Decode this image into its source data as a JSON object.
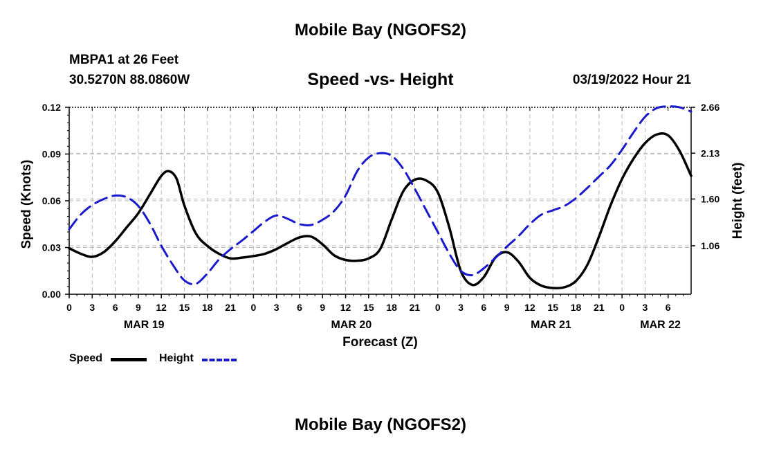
{
  "title": "Mobile Bay (NGOFS2)",
  "station": "MBPA1 at 26 Feet",
  "coords": "30.5270N  88.0860W",
  "datetime": "03/19/2022 Hour 21",
  "bottom_title": "Mobile Bay (NGOFS2)",
  "legend": {
    "speed": "Speed",
    "height": "Height"
  },
  "colors": {
    "speed": "#000000",
    "height": "#1a1acc",
    "grid": "#bbbbbb"
  },
  "chart_data": {
    "type": "line",
    "title": "Speed -vs- Height",
    "xlabel": "Forecast (Z)",
    "ylabel": "Speed (Knots)",
    "y2label": "Height (feet)",
    "x_range": [
      0,
      81
    ],
    "x_tick_labels": [
      "0",
      "3",
      "6",
      "9",
      "12",
      "15",
      "18",
      "21",
      "0",
      "3",
      "6",
      "9",
      "12",
      "15",
      "18",
      "21",
      "0",
      "3",
      "6",
      "9",
      "12",
      "15",
      "18",
      "21",
      "0",
      "3",
      "6"
    ],
    "day_labels": [
      {
        "label": "MAR 19",
        "x": 9.75
      },
      {
        "label": "MAR 20",
        "x": 36.75
      },
      {
        "label": "MAR 21",
        "x": 62.75
      },
      {
        "label": "MAR 22",
        "x": 77
      }
    ],
    "ylim": [
      0,
      0.12
    ],
    "y_ticks": [
      "0.00",
      "0.03",
      "0.06",
      "0.09",
      "0.12"
    ],
    "y2lim": [
      0.5,
      2.66
    ],
    "y2_ticks": [
      "1.06",
      "1.60",
      "2.13",
      "2.66"
    ],
    "grid": true,
    "series": [
      {
        "name": "Speed",
        "axis": "left",
        "style": "solid",
        "x": [
          0,
          1.5,
          3,
          4.5,
          6,
          7.5,
          9,
          10.5,
          12,
          13,
          14,
          15,
          16.5,
          18,
          19.5,
          21,
          22.5,
          24,
          25.5,
          27,
          28.5,
          30,
          31.5,
          33,
          34.5,
          36,
          37.5,
          39,
          40.5,
          42,
          43.5,
          45,
          46.5,
          48,
          49.5,
          51,
          52.5,
          54,
          55.5,
          57,
          58.5,
          60,
          61.5,
          63,
          64.5,
          66,
          67.5,
          69,
          70.5,
          72,
          73.5,
          75,
          76.5,
          78,
          79.5,
          81
        ],
        "values": [
          0.0295,
          0.026,
          0.024,
          0.027,
          0.034,
          0.043,
          0.052,
          0.064,
          0.076,
          0.079,
          0.074,
          0.057,
          0.039,
          0.031,
          0.026,
          0.023,
          0.0235,
          0.0245,
          0.026,
          0.029,
          0.033,
          0.0365,
          0.037,
          0.032,
          0.025,
          0.022,
          0.0215,
          0.023,
          0.029,
          0.048,
          0.066,
          0.0735,
          0.073,
          0.0655,
          0.043,
          0.015,
          0.006,
          0.011,
          0.0235,
          0.027,
          0.021,
          0.0105,
          0.0055,
          0.004,
          0.0045,
          0.0085,
          0.019,
          0.037,
          0.057,
          0.074,
          0.087,
          0.097,
          0.1025,
          0.102,
          0.092,
          0.076
        ]
      },
      {
        "name": "Height",
        "axis": "right",
        "style": "dashed",
        "x": [
          0,
          1.5,
          3,
          4.5,
          6,
          7.5,
          9,
          10.5,
          12,
          13.5,
          15,
          16.5,
          18,
          19.5,
          21,
          22.5,
          24,
          25.5,
          27,
          28.5,
          30,
          31.5,
          33,
          34.5,
          36,
          37.5,
          39,
          40.5,
          42,
          43.5,
          45,
          46.5,
          48,
          49.5,
          51,
          52.5,
          54,
          55.5,
          57,
          58.5,
          60,
          61.5,
          63,
          64.5,
          66,
          67.5,
          69,
          70.5,
          72,
          73.5,
          75,
          76.5,
          78,
          79.5,
          81
        ],
        "values": [
          1.25,
          1.42,
          1.53,
          1.6,
          1.64,
          1.62,
          1.52,
          1.32,
          1.06,
          0.84,
          0.66,
          0.62,
          0.74,
          0.9,
          1.02,
          1.12,
          1.23,
          1.34,
          1.41,
          1.37,
          1.31,
          1.3,
          1.36,
          1.46,
          1.64,
          1.92,
          2.08,
          2.13,
          2.1,
          1.95,
          1.72,
          1.47,
          1.22,
          0.97,
          0.77,
          0.72,
          0.8,
          0.92,
          1.05,
          1.17,
          1.31,
          1.42,
          1.47,
          1.52,
          1.61,
          1.73,
          1.86,
          1.99,
          2.17,
          2.37,
          2.55,
          2.65,
          2.67,
          2.66,
          2.61
        ]
      }
    ]
  }
}
